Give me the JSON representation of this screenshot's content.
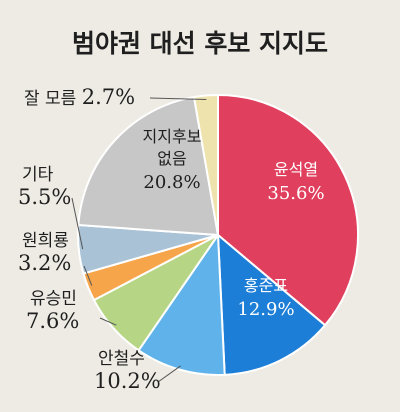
{
  "chart_data": {
    "type": "pie",
    "title": "범야권 대선 후보 지지도",
    "unit": "%",
    "slices": [
      {
        "name": "윤석열",
        "value": 35.6,
        "value_label": "35.6%",
        "color": "#e0405e",
        "label_color": "#ffffff"
      },
      {
        "name": "홍준표",
        "value": 12.9,
        "value_label": "12.9%",
        "color": "#1c7ed6",
        "label_color": "#ffffff"
      },
      {
        "name": "안철수",
        "value": 10.2,
        "value_label": "10.2%",
        "color": "#5fb2ea",
        "label_color": "#1f1f1f"
      },
      {
        "name": "유승민",
        "value": 7.6,
        "value_label": "7.6%",
        "color": "#b7d685",
        "label_color": "#1f1f1f"
      },
      {
        "name": "원희룡",
        "value": 3.2,
        "value_label": "3.2%",
        "color": "#f7a54a",
        "label_color": "#1f1f1f"
      },
      {
        "name": "기타",
        "value": 5.5,
        "value_label": "5.5%",
        "color": "#a9c2d6",
        "label_color": "#1f1f1f"
      },
      {
        "name": "지지후보 없음",
        "name_lines": [
          "지지후보",
          "없음"
        ],
        "value": 20.8,
        "value_label": "20.8%",
        "color": "#c7c7c7",
        "label_color": "#1f1f1f"
      },
      {
        "name": "잘 모름",
        "value": 2.7,
        "value_label": "2.7%",
        "color": "#eee2ad",
        "label_color": "#1f1f1f"
      }
    ]
  }
}
